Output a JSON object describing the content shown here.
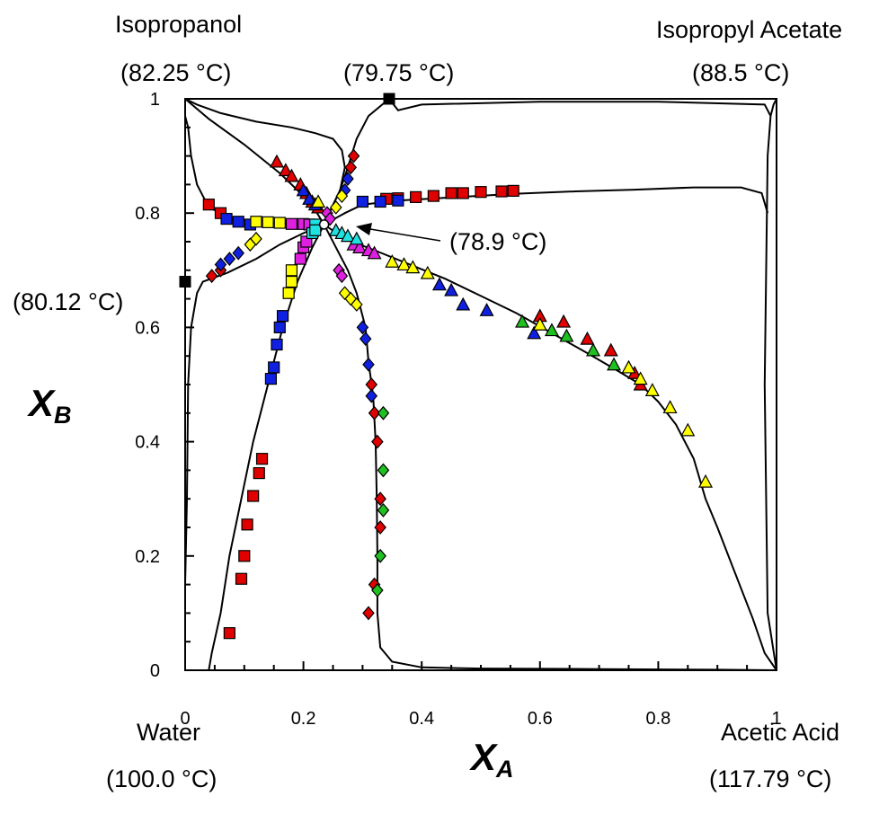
{
  "labels": {
    "top_left_component": "Isopropanol",
    "top_left_temp": "(82.25 °C)",
    "top_mid_temp": "(79.75 °C)",
    "top_right_component": "Isopropyl Acetate",
    "top_right_temp": "(88.5 °C)",
    "left_mid_temp": "(80.12 °C)",
    "ternary_azeotrope_temp": "(78.9 °C)",
    "bottom_left_component": "Water",
    "bottom_left_temp": "(100.0 °C)",
    "bottom_right_component": "Acetic Acid",
    "bottom_right_temp": "(117.79 °C)"
  },
  "chart_data": {
    "type": "scatter",
    "xlabel": "X",
    "xlabel_sub": "A",
    "ylabel": "X",
    "ylabel_sub": "B",
    "xlim": [
      0,
      1
    ],
    "ylim": [
      0,
      1
    ],
    "xticks": [
      0,
      0.2,
      0.4,
      0.6,
      0.8,
      1
    ],
    "yticks": [
      0,
      0.2,
      0.4,
      0.6,
      0.8,
      1
    ],
    "xtick_labels": [
      "0",
      "0.2",
      "0.4",
      "0.6",
      "0.8",
      "1"
    ],
    "ytick_labels": [
      "0",
      "0.2",
      "0.4",
      "0.6",
      "0.8",
      "1"
    ],
    "grid": false,
    "singular_points": [
      {
        "label": "(79.75 °C)",
        "x": 0.345,
        "y": 1.0,
        "marker": "square",
        "color": "#000000"
      },
      {
        "label": "(80.12 °C)",
        "x": 0.0,
        "y": 0.68,
        "marker": "square",
        "color": "#000000"
      },
      {
        "label": "(78.9 °C)",
        "x": 0.235,
        "y": 0.78,
        "marker": "circle",
        "color": "#ffffff"
      }
    ],
    "curves": [
      {
        "points": [
          [
            0,
            1
          ],
          [
            0.02,
            0.99
          ],
          [
            0.06,
            0.975
          ],
          [
            0.12,
            0.96
          ],
          [
            0.18,
            0.95
          ],
          [
            0.22,
            0.94
          ],
          [
            0.25,
            0.93
          ],
          [
            0.265,
            0.91
          ],
          [
            0.27,
            0.88
          ],
          [
            0.262,
            0.84
          ],
          [
            0.248,
            0.81
          ],
          [
            0.235,
            0.78
          ]
        ]
      },
      {
        "points": [
          [
            0.345,
            1
          ],
          [
            0.31,
            0.97
          ],
          [
            0.29,
            0.93
          ],
          [
            0.275,
            0.88
          ],
          [
            0.262,
            0.84
          ],
          [
            0.248,
            0.81
          ],
          [
            0.235,
            0.78
          ]
        ]
      },
      {
        "points": [
          [
            0,
            1
          ],
          [
            0.04,
            0.965
          ],
          [
            0.1,
            0.92
          ],
          [
            0.16,
            0.87
          ],
          [
            0.2,
            0.83
          ],
          [
            0.22,
            0.805
          ],
          [
            0.235,
            0.78
          ],
          [
            0.27,
            0.755
          ],
          [
            0.32,
            0.735
          ],
          [
            0.38,
            0.71
          ],
          [
            0.44,
            0.685
          ],
          [
            0.5,
            0.655
          ],
          [
            0.56,
            0.625
          ],
          [
            0.62,
            0.59
          ],
          [
            0.68,
            0.555
          ],
          [
            0.73,
            0.525
          ],
          [
            0.77,
            0.5
          ],
          [
            0.8,
            0.47
          ],
          [
            0.83,
            0.43
          ],
          [
            0.86,
            0.37
          ],
          [
            0.88,
            0.3
          ],
          [
            0.9,
            0.25
          ],
          [
            0.93,
            0.17
          ],
          [
            0.96,
            0.09
          ],
          [
            0.98,
            0.03
          ],
          [
            1,
            0
          ]
        ]
      },
      {
        "points": [
          [
            1,
            1
          ],
          [
            0.995,
            0.99
          ],
          [
            0.99,
            0.97
          ],
          [
            0.985,
            0.9
          ],
          [
            0.98,
            0.5
          ],
          [
            0.985,
            0.1
          ],
          [
            1,
            0
          ]
        ]
      },
      {
        "points": [
          [
            0.345,
            1
          ],
          [
            0.36,
            0.98
          ],
          [
            0.4,
            0.99
          ],
          [
            0.6,
            0.995
          ],
          [
            0.8,
            0.995
          ],
          [
            0.98,
            0.99
          ],
          [
            0.99,
            0.97
          ]
        ]
      },
      {
        "points": [
          [
            0.235,
            0.78
          ],
          [
            0.27,
            0.8
          ],
          [
            0.3,
            0.815
          ],
          [
            0.36,
            0.822
          ],
          [
            0.46,
            0.828
          ],
          [
            0.56,
            0.834
          ],
          [
            0.66,
            0.838
          ],
          [
            0.76,
            0.841
          ],
          [
            0.86,
            0.845
          ],
          [
            0.94,
            0.845
          ],
          [
            0.975,
            0.835
          ],
          [
            0.985,
            0.8
          ]
        ]
      },
      {
        "points": [
          [
            0,
            0.97
          ],
          [
            0.005,
            0.95
          ],
          [
            0.01,
            0.9
          ],
          [
            0.02,
            0.85
          ],
          [
            0.04,
            0.81
          ],
          [
            0.08,
            0.79
          ],
          [
            0.15,
            0.782
          ],
          [
            0.2,
            0.78
          ],
          [
            0.235,
            0.78
          ]
        ]
      },
      {
        "points": [
          [
            0.235,
            0.78
          ],
          [
            0.2,
            0.765
          ],
          [
            0.16,
            0.745
          ],
          [
            0.12,
            0.72
          ],
          [
            0.07,
            0.695
          ],
          [
            0.03,
            0.68
          ],
          [
            0.02,
            0.66
          ],
          [
            0.01,
            0.6
          ],
          [
            0.005,
            0.5
          ],
          [
            0.003,
            0.3
          ],
          [
            0,
            0.15
          ]
        ]
      },
      {
        "points": [
          [
            0.235,
            0.78
          ],
          [
            0.215,
            0.74
          ],
          [
            0.19,
            0.68
          ],
          [
            0.165,
            0.6
          ],
          [
            0.14,
            0.5
          ],
          [
            0.115,
            0.4
          ],
          [
            0.095,
            0.3
          ],
          [
            0.075,
            0.2
          ],
          [
            0.06,
            0.1
          ],
          [
            0.045,
            0.03
          ],
          [
            0.04,
            0
          ]
        ]
      },
      {
        "points": [
          [
            0.235,
            0.78
          ],
          [
            0.255,
            0.74
          ],
          [
            0.275,
            0.7
          ],
          [
            0.29,
            0.66
          ],
          [
            0.305,
            0.6
          ],
          [
            0.31,
            0.54
          ],
          [
            0.318,
            0.48
          ],
          [
            0.322,
            0.4
          ],
          [
            0.324,
            0.3
          ],
          [
            0.325,
            0.2
          ],
          [
            0.325,
            0.1
          ],
          [
            0.33,
            0.04
          ],
          [
            0.35,
            0.015
          ],
          [
            0.4,
            0.005
          ],
          [
            0.5,
            0.003
          ],
          [
            0.7,
            0.002
          ],
          [
            0.9,
            0.001
          ],
          [
            1,
            0
          ]
        ]
      }
    ],
    "series": [
      {
        "marker": "triangle",
        "color": "#e00000",
        "points": [
          [
            0.155,
            0.89
          ],
          [
            0.17,
            0.875
          ],
          [
            0.18,
            0.865
          ],
          [
            0.195,
            0.85
          ],
          [
            0.205,
            0.835
          ],
          [
            0.215,
            0.82
          ],
          [
            0.225,
            0.81
          ],
          [
            0.6,
            0.62
          ],
          [
            0.64,
            0.61
          ],
          [
            0.68,
            0.58
          ],
          [
            0.72,
            0.56
          ],
          [
            0.76,
            0.52
          ],
          [
            0.77,
            0.5
          ]
        ]
      },
      {
        "marker": "triangle",
        "color": "#1020e0",
        "points": [
          [
            0.2,
            0.84
          ],
          [
            0.21,
            0.825
          ],
          [
            0.22,
            0.815
          ],
          [
            0.43,
            0.675
          ],
          [
            0.45,
            0.665
          ],
          [
            0.47,
            0.64
          ],
          [
            0.51,
            0.63
          ],
          [
            0.59,
            0.59
          ]
        ]
      },
      {
        "marker": "triangle",
        "color": "#20c020",
        "points": [
          [
            0.57,
            0.61
          ],
          [
            0.62,
            0.595
          ],
          [
            0.645,
            0.585
          ],
          [
            0.69,
            0.56
          ],
          [
            0.725,
            0.535
          ]
        ]
      },
      {
        "marker": "triangle",
        "color": "#ffff00",
        "points": [
          [
            0.225,
            0.82
          ],
          [
            0.35,
            0.715
          ],
          [
            0.37,
            0.71
          ],
          [
            0.385,
            0.705
          ],
          [
            0.41,
            0.695
          ],
          [
            0.6,
            0.605
          ],
          [
            0.75,
            0.53
          ],
          [
            0.77,
            0.51
          ],
          [
            0.79,
            0.49
          ],
          [
            0.82,
            0.46
          ],
          [
            0.85,
            0.42
          ],
          [
            0.88,
            0.33
          ]
        ]
      },
      {
        "marker": "triangle",
        "color": "#e020e0",
        "points": [
          [
            0.285,
            0.745
          ],
          [
            0.295,
            0.74
          ],
          [
            0.31,
            0.735
          ],
          [
            0.32,
            0.73
          ]
        ]
      },
      {
        "marker": "triangle",
        "color": "#20e0e0",
        "points": [
          [
            0.255,
            0.77
          ],
          [
            0.265,
            0.765
          ],
          [
            0.275,
            0.76
          ],
          [
            0.29,
            0.755
          ]
        ]
      },
      {
        "marker": "square",
        "color": "#e00000",
        "points": [
          [
            0.04,
            0.815
          ],
          [
            0.06,
            0.8
          ],
          [
            0.34,
            0.825
          ],
          [
            0.36,
            0.826
          ],
          [
            0.39,
            0.828
          ],
          [
            0.42,
            0.83
          ],
          [
            0.45,
            0.835
          ],
          [
            0.47,
            0.835
          ],
          [
            0.5,
            0.837
          ],
          [
            0.535,
            0.838
          ],
          [
            0.555,
            0.839
          ],
          [
            0.13,
            0.37
          ],
          [
            0.125,
            0.345
          ],
          [
            0.115,
            0.305
          ],
          [
            0.105,
            0.255
          ],
          [
            0.1,
            0.2
          ],
          [
            0.095,
            0.16
          ],
          [
            0.075,
            0.065
          ]
        ]
      },
      {
        "marker": "square",
        "color": "#1020e0",
        "points": [
          [
            0.07,
            0.79
          ],
          [
            0.09,
            0.785
          ],
          [
            0.11,
            0.78
          ],
          [
            0.3,
            0.82
          ],
          [
            0.33,
            0.82
          ],
          [
            0.36,
            0.822
          ],
          [
            0.145,
            0.51
          ],
          [
            0.15,
            0.53
          ],
          [
            0.155,
            0.57
          ],
          [
            0.16,
            0.6
          ],
          [
            0.165,
            0.62
          ]
        ]
      },
      {
        "marker": "square",
        "color": "#ffff00",
        "points": [
          [
            0.12,
            0.785
          ],
          [
            0.14,
            0.784
          ],
          [
            0.16,
            0.783
          ],
          [
            0.175,
            0.66
          ],
          [
            0.18,
            0.68
          ],
          [
            0.18,
            0.7
          ]
        ]
      },
      {
        "marker": "square",
        "color": "#e020e0",
        "points": [
          [
            0.18,
            0.781
          ],
          [
            0.2,
            0.781
          ],
          [
            0.21,
            0.78
          ],
          [
            0.195,
            0.72
          ],
          [
            0.2,
            0.74
          ],
          [
            0.205,
            0.75
          ]
        ]
      },
      {
        "marker": "square",
        "color": "#20e0e0",
        "points": [
          [
            0.22,
            0.78
          ],
          [
            0.215,
            0.765
          ],
          [
            0.22,
            0.77
          ]
        ]
      },
      {
        "marker": "diamond",
        "color": "#e00000",
        "points": [
          [
            0.285,
            0.9
          ],
          [
            0.28,
            0.88
          ],
          [
            0.045,
            0.69
          ],
          [
            0.06,
            0.7
          ],
          [
            0.315,
            0.5
          ],
          [
            0.32,
            0.45
          ],
          [
            0.325,
            0.4
          ],
          [
            0.33,
            0.3
          ],
          [
            0.33,
            0.25
          ],
          [
            0.32,
            0.15
          ],
          [
            0.31,
            0.1
          ]
        ]
      },
      {
        "marker": "diamond",
        "color": "#1020e0",
        "points": [
          [
            0.275,
            0.86
          ],
          [
            0.27,
            0.84
          ],
          [
            0.06,
            0.71
          ],
          [
            0.075,
            0.72
          ],
          [
            0.09,
            0.73
          ],
          [
            0.3,
            0.6
          ],
          [
            0.305,
            0.58
          ],
          [
            0.31,
            0.535
          ],
          [
            0.315,
            0.48
          ]
        ]
      },
      {
        "marker": "diamond",
        "color": "#20c020",
        "points": [
          [
            0.335,
            0.45
          ],
          [
            0.335,
            0.35
          ],
          [
            0.335,
            0.28
          ],
          [
            0.33,
            0.2
          ],
          [
            0.325,
            0.14
          ]
        ]
      },
      {
        "marker": "diamond",
        "color": "#ffff00",
        "points": [
          [
            0.265,
            0.83
          ],
          [
            0.255,
            0.81
          ],
          [
            0.11,
            0.745
          ],
          [
            0.12,
            0.755
          ],
          [
            0.27,
            0.66
          ],
          [
            0.28,
            0.65
          ],
          [
            0.29,
            0.64
          ]
        ]
      },
      {
        "marker": "diamond",
        "color": "#e020e0",
        "points": [
          [
            0.24,
            0.8
          ],
          [
            0.245,
            0.79
          ],
          [
            0.26,
            0.7
          ],
          [
            0.265,
            0.69
          ]
        ]
      }
    ]
  }
}
